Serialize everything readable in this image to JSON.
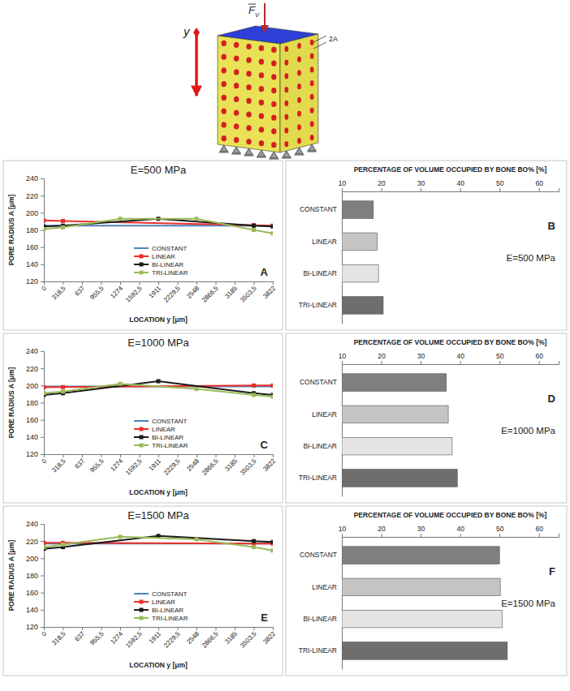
{
  "diagram": {
    "force_label": "F",
    "force_subscript": "V",
    "axis_label": "y",
    "pore_label": "2A"
  },
  "chart_data": [
    {
      "type": "line",
      "panel_label": "A",
      "title": "E=500 MPa",
      "x_label": "LOCATION y [μm]",
      "y_label": "PORE RADIUS A [μm]",
      "xlim": [
        0,
        3822
      ],
      "xticks": [
        0,
        {
          "value": 318.5,
          "label": "318,5"
        },
        637,
        {
          "value": 955.5,
          "label": "955,5"
        },
        1274,
        {
          "value": 1592.5,
          "label": "1592,5"
        },
        1911,
        {
          "value": 2229.5,
          "label": "2229,5"
        },
        2548,
        {
          "value": 2866.5,
          "label": "2866,5"
        },
        3185,
        {
          "value": 3503.5,
          "label": "3503,5"
        },
        3822
      ],
      "ylim": [
        120,
        240
      ],
      "yticks": [
        120,
        140,
        160,
        180,
        200,
        220,
        240
      ],
      "legend": "lower center",
      "series": [
        {
          "name": "CONSTANT",
          "color": "#4f81bd",
          "marker": "none",
          "x": [
            0,
            3822
          ],
          "values": [
            185,
            185
          ]
        },
        {
          "name": "LINEAR",
          "color": "#e8302a",
          "marker": "square",
          "x": [
            0,
            318.5,
            3503.5,
            3822
          ],
          "values": [
            191,
            190.5,
            185.5,
            185
          ]
        },
        {
          "name": "BI-LINEAR",
          "color": "#1a1a1a",
          "marker": "square",
          "x": [
            0,
            318.5,
            1911,
            3503.5,
            3822
          ],
          "values": [
            184,
            185,
            193,
            185,
            184
          ]
        },
        {
          "name": "TRI-LINEAR",
          "color": "#9bbb59",
          "marker": "square",
          "x": [
            0,
            318.5,
            1274,
            2548,
            3503.5,
            3822
          ],
          "values": [
            181,
            183,
            193,
            193,
            180,
            176
          ]
        }
      ]
    },
    {
      "type": "bar",
      "orientation": "horizontal",
      "panel_label": "B",
      "title": "PERCENTAGE OF VOLUME OCCUPIED BY BONE BO% [%]",
      "annotation": "E=500 MPa",
      "categories": [
        "CONSTANT",
        "LINEAR",
        "BI-LINEAR",
        "TRI-LINEAR"
      ],
      "values": [
        18,
        19,
        19.3,
        20.5
      ],
      "colors": [
        "#7f7f7f",
        "#c4c4c4",
        "#e4e4e4",
        "#6e6e6e"
      ],
      "xlim": [
        10,
        65
      ],
      "xticks": [
        10,
        20,
        30,
        40,
        50,
        60
      ]
    },
    {
      "type": "line",
      "panel_label": "C",
      "title": "E=1000 MPa",
      "x_label": "LOCATION y [μm]",
      "y_label": "PORE RADIUS A [μm]",
      "xlim": [
        0,
        3822
      ],
      "xticks": [
        0,
        {
          "value": 318.5,
          "label": "318,5"
        },
        637,
        {
          "value": 955.5,
          "label": "955,5"
        },
        1274,
        {
          "value": 1592.5,
          "label": "1592,5"
        },
        1911,
        {
          "value": 2229.5,
          "label": "2229,5"
        },
        2548,
        {
          "value": 2866.5,
          "label": "2866,5"
        },
        3185,
        {
          "value": 3503.5,
          "label": "3503,5"
        },
        3822
      ],
      "ylim": [
        120,
        240
      ],
      "yticks": [
        120,
        140,
        160,
        180,
        200,
        220,
        240
      ],
      "legend": "lower center",
      "series": [
        {
          "name": "CONSTANT",
          "color": "#4f81bd",
          "marker": "none",
          "x": [
            0,
            3822
          ],
          "values": [
            199,
            199
          ]
        },
        {
          "name": "LINEAR",
          "color": "#e8302a",
          "marker": "square",
          "x": [
            0,
            318.5,
            3503.5,
            3822
          ],
          "values": [
            198,
            198.2,
            200,
            200
          ]
        },
        {
          "name": "BI-LINEAR",
          "color": "#1a1a1a",
          "marker": "square",
          "x": [
            0,
            318.5,
            1911,
            3503.5,
            3822
          ],
          "values": [
            189,
            191,
            205,
            191,
            189
          ]
        },
        {
          "name": "TRI-LINEAR",
          "color": "#9bbb59",
          "marker": "square",
          "x": [
            0,
            318.5,
            1274,
            2548,
            3503.5,
            3822
          ],
          "values": [
            191,
            193,
            202,
            196,
            189,
            187
          ]
        }
      ]
    },
    {
      "type": "bar",
      "orientation": "horizontal",
      "panel_label": "D",
      "title": "PERCENTAGE OF VOLUME OCCUPIED BY BONE BO% [%]",
      "annotation": "E=1000 MPa",
      "categories": [
        "CONSTANT",
        "LINEAR",
        "BI-LINEAR",
        "TRI-LINEAR"
      ],
      "values": [
        36.5,
        37,
        38,
        39.3
      ],
      "colors": [
        "#7f7f7f",
        "#c4c4c4",
        "#e4e4e4",
        "#6e6e6e"
      ],
      "xlim": [
        10,
        65
      ],
      "xticks": [
        10,
        20,
        30,
        40,
        50,
        60
      ]
    },
    {
      "type": "line",
      "panel_label": "E",
      "title": "E=1500 MPa",
      "x_label": "LOCATION y [μm]",
      "y_label": "PORE RADIUS A [μm]",
      "xlim": [
        0,
        3822
      ],
      "xticks": [
        0,
        {
          "value": 318.5,
          "label": "318,5"
        },
        637,
        {
          "value": 955.5,
          "label": "955,5"
        },
        1274,
        {
          "value": 1592.5,
          "label": "1592,5"
        },
        1911,
        {
          "value": 2229.5,
          "label": "2229,5"
        },
        2548,
        {
          "value": 2866.5,
          "label": "2866,5"
        },
        3185,
        {
          "value": 3503.5,
          "label": "3503,5"
        },
        3822
      ],
      "ylim": [
        120,
        240
      ],
      "yticks": [
        120,
        140,
        160,
        180,
        200,
        220,
        240
      ],
      "legend": "lower center",
      "series": [
        {
          "name": "CONSTANT",
          "color": "#4f81bd",
          "marker": "none",
          "x": [
            0,
            3822
          ],
          "values": [
            217,
            217
          ]
        },
        {
          "name": "LINEAR",
          "color": "#e8302a",
          "marker": "square",
          "x": [
            0,
            318.5,
            3503.5,
            3822
          ],
          "values": [
            218,
            218,
            217,
            217
          ]
        },
        {
          "name": "BI-LINEAR",
          "color": "#1a1a1a",
          "marker": "square",
          "x": [
            0,
            318.5,
            1911,
            3503.5,
            3822
          ],
          "values": [
            211,
            213,
            226,
            220,
            219
          ]
        },
        {
          "name": "TRI-LINEAR",
          "color": "#9bbb59",
          "marker": "square",
          "x": [
            0,
            318.5,
            1274,
            2548,
            3503.5,
            3822
          ],
          "values": [
            213,
            216,
            225,
            222,
            213,
            209
          ]
        }
      ]
    },
    {
      "type": "bar",
      "orientation": "horizontal",
      "panel_label": "F",
      "title": "PERCENTAGE OF VOLUME OCCUPIED BY BONE BO% [%]",
      "annotation": "E=1500 MPa",
      "categories": [
        "CONSTANT",
        "LINEAR",
        "BI-LINEAR",
        "TRI-LINEAR"
      ],
      "values": [
        50,
        50.2,
        50.7,
        52
      ],
      "colors": [
        "#7f7f7f",
        "#c4c4c4",
        "#e4e4e4",
        "#6e6e6e"
      ],
      "xlim": [
        10,
        65
      ],
      "xticks": [
        10,
        20,
        30,
        40,
        50,
        60
      ]
    }
  ]
}
